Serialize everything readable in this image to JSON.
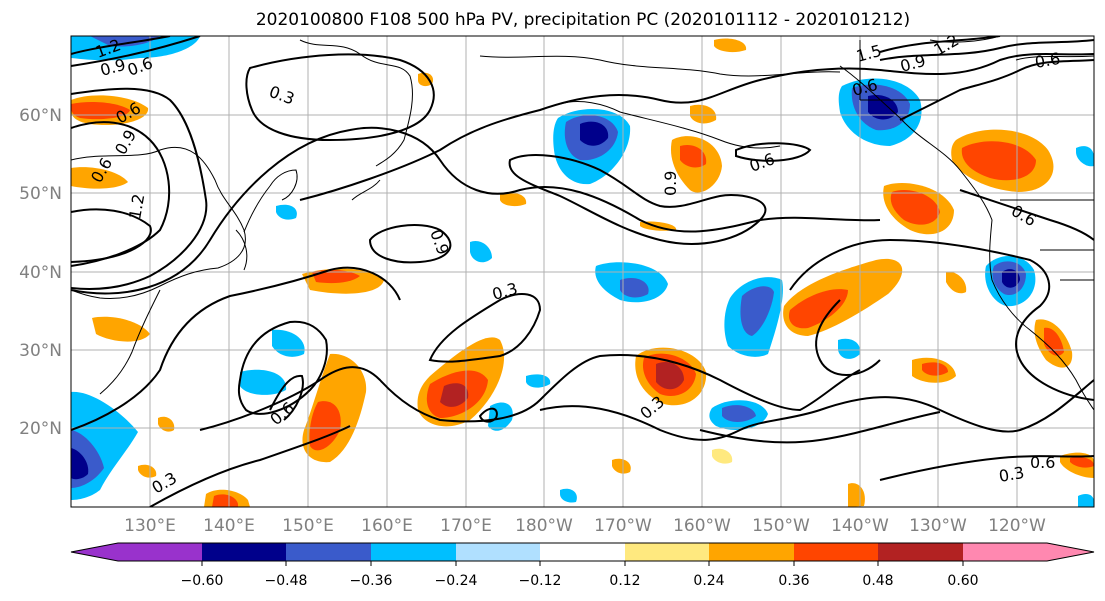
{
  "title": "2020100800 F108 500 hPa PV, precipitation PC (2020101112 - 2020101212)",
  "latitude_labels": [
    "60°N",
    "50°N",
    "40°N",
    "30°N",
    "20°N"
  ],
  "longitude_labels": [
    "130°E",
    "140°E",
    "150°E",
    "160°E",
    "170°E",
    "180°W",
    "170°W",
    "160°W",
    "150°W",
    "140°W",
    "130°W",
    "120°W"
  ],
  "colorbar": {
    "tick_labels": [
      "−0.60",
      "−0.48",
      "−0.36",
      "−0.24",
      "−0.12",
      "0.12",
      "0.24",
      "0.36",
      "0.48",
      "0.60"
    ],
    "colors": [
      "#9932cc",
      "#00008b",
      "#3a5bcb",
      "#00bfff",
      "#b0e0ff",
      "#ffffff",
      "#ffe97f",
      "#ffa500",
      "#ff4500",
      "#b22222",
      "#ff88b0"
    ]
  },
  "contour_labels": [
    "1.2",
    "0.9",
    "0.6",
    "0.6",
    "0.9",
    "0.6",
    "1.2",
    "0.3",
    "0.9",
    "0.3",
    "0.6",
    "0.3",
    "0.9",
    "0.6",
    "1.5",
    "0.9",
    "1.2",
    "0.6",
    "0.6",
    "0.6",
    "0.6",
    "0.3",
    "0.3"
  ]
}
